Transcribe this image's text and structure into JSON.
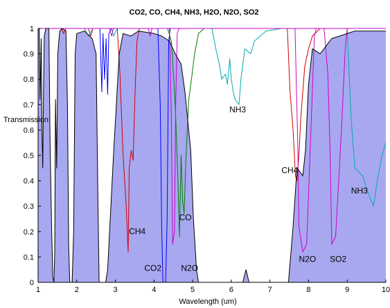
{
  "chart_data": {
    "type": "area",
    "title": "CO2, CO, CH4, NH3, H2O, N2O, SO2",
    "xlabel": "Wavelength (um)",
    "ylabel": "Transmission",
    "xlim": [
      1,
      10
    ],
    "ylim": [
      0,
      1
    ],
    "x_ticks": [
      "1",
      "2",
      "3",
      "4",
      "5",
      "6",
      "7",
      "8",
      "9",
      "10"
    ],
    "y_ticks": [
      "0",
      "0.1",
      "0.2",
      "0.3",
      "0.4",
      "0.5",
      "0.6",
      "0.7",
      "0.8",
      "0.9",
      "1"
    ],
    "grid": false,
    "series": [
      {
        "name": "H2O",
        "color": "#000000",
        "fill": "#a8a8f0",
        "points": [
          [
            1,
            1
          ],
          [
            1.03,
            1
          ],
          [
            1.05,
            0.72
          ],
          [
            1.08,
            0.96
          ],
          [
            1.1,
            0.6
          ],
          [
            1.12,
            0.45
          ],
          [
            1.14,
            0.74
          ],
          [
            1.16,
            0.97
          ],
          [
            1.2,
            1
          ],
          [
            1.28,
            1
          ],
          [
            1.31,
            0.55
          ],
          [
            1.35,
            0.22
          ],
          [
            1.38,
            0.02
          ],
          [
            1.41,
            0
          ],
          [
            1.43,
            0.12
          ],
          [
            1.45,
            0.72
          ],
          [
            1.48,
            0.45
          ],
          [
            1.51,
            0.9
          ],
          [
            1.56,
            0.99
          ],
          [
            1.62,
            1
          ],
          [
            1.72,
            0.99
          ],
          [
            1.76,
            0.7
          ],
          [
            1.79,
            0.15
          ],
          [
            1.82,
            0
          ],
          [
            1.88,
            0
          ],
          [
            1.92,
            0.2
          ],
          [
            1.96,
            0.9
          ],
          [
            2,
            0.98
          ],
          [
            2.2,
            0.99
          ],
          [
            2.4,
            0.96
          ],
          [
            2.5,
            0.9
          ],
          [
            2.55,
            0.3
          ],
          [
            2.58,
            0
          ],
          [
            2.75,
            0
          ],
          [
            2.8,
            0.05
          ],
          [
            2.95,
            0.5
          ],
          [
            3.1,
            0.9
          ],
          [
            3.2,
            0.98
          ],
          [
            3.4,
            0.97
          ],
          [
            3.6,
            0.99
          ],
          [
            4,
            0.98
          ],
          [
            4.2,
            0.97
          ],
          [
            4.4,
            0.95
          ],
          [
            4.55,
            0.9
          ],
          [
            4.7,
            0.86
          ],
          [
            4.8,
            0.75
          ],
          [
            4.95,
            0.52
          ],
          [
            5.02,
            0.25
          ],
          [
            5.1,
            0.05
          ],
          [
            5.15,
            0
          ],
          [
            6.3,
            0
          ],
          [
            6.38,
            0.05
          ],
          [
            6.46,
            0
          ],
          [
            7.48,
            0
          ],
          [
            7.6,
            0.22
          ],
          [
            7.7,
            0.45
          ],
          [
            7.85,
            0.42
          ],
          [
            7.92,
            0.52
          ],
          [
            8,
            0.78
          ],
          [
            8.1,
            0.92
          ],
          [
            8.3,
            0.9
          ],
          [
            8.6,
            0.96
          ],
          [
            9.2,
            0.99
          ],
          [
            10,
            0.99
          ]
        ]
      },
      {
        "name": "CO2",
        "color": "#0000ff",
        "points": [
          [
            1,
            1
          ],
          [
            2.6,
            1
          ],
          [
            2.65,
            0.75
          ],
          [
            2.68,
            0.98
          ],
          [
            2.72,
            0.8
          ],
          [
            2.76,
            0.96
          ],
          [
            2.8,
            0.74
          ],
          [
            2.83,
            0.98
          ],
          [
            2.9,
            1
          ],
          [
            4.1,
            1
          ],
          [
            4.16,
            0.7
          ],
          [
            4.2,
            0.2
          ],
          [
            4.23,
            0
          ],
          [
            4.3,
            0
          ],
          [
            4.34,
            0.25
          ],
          [
            4.38,
            0.95
          ],
          [
            4.42,
            1
          ],
          [
            10,
            1
          ]
        ]
      },
      {
        "name": "CO",
        "color": "#008000",
        "points": [
          [
            1,
            1
          ],
          [
            4.35,
            1
          ],
          [
            4.45,
            0.95
          ],
          [
            4.55,
            0.7
          ],
          [
            4.62,
            0.4
          ],
          [
            4.66,
            0.18
          ],
          [
            4.7,
            0.5
          ],
          [
            4.74,
            0.32
          ],
          [
            4.78,
            0.27
          ],
          [
            4.83,
            0.5
          ],
          [
            4.9,
            0.72
          ],
          [
            4.97,
            0.8
          ],
          [
            5.05,
            0.9
          ],
          [
            5.15,
            0.98
          ],
          [
            5.3,
            1
          ],
          [
            10,
            1
          ]
        ]
      },
      {
        "name": "CH4",
        "color": "#cc0000",
        "points": [
          [
            1,
            1
          ],
          [
            1.6,
            1
          ],
          [
            1.66,
            0.98
          ],
          [
            1.72,
            1
          ],
          [
            2.3,
            1
          ],
          [
            2.36,
            0.97
          ],
          [
            2.42,
            1
          ],
          [
            3.05,
            1
          ],
          [
            3.12,
            0.82
          ],
          [
            3.2,
            0.5
          ],
          [
            3.28,
            0.3
          ],
          [
            3.33,
            0.12
          ],
          [
            3.36,
            0.45
          ],
          [
            3.41,
            0.52
          ],
          [
            3.46,
            0.48
          ],
          [
            3.51,
            0.75
          ],
          [
            3.56,
            0.95
          ],
          [
            3.62,
            1
          ],
          [
            7.45,
            1
          ],
          [
            7.52,
            0.75
          ],
          [
            7.6,
            0.6
          ],
          [
            7.66,
            0.42
          ],
          [
            7.7,
            0.4
          ],
          [
            7.75,
            0.5
          ],
          [
            7.8,
            0.65
          ],
          [
            7.9,
            0.85
          ],
          [
            8,
            0.92
          ],
          [
            8.1,
            0.97
          ],
          [
            8.3,
            1
          ],
          [
            10,
            1
          ]
        ]
      },
      {
        "name": "NH3",
        "color": "#00aaaa",
        "points": [
          [
            1,
            1
          ],
          [
            2.2,
            1
          ],
          [
            2.3,
            0.97
          ],
          [
            2.42,
            1
          ],
          [
            2.9,
            1
          ],
          [
            2.95,
            0.97
          ],
          [
            3.05,
            1
          ],
          [
            5.5,
            1
          ],
          [
            5.6,
            0.92
          ],
          [
            5.7,
            0.85
          ],
          [
            5.75,
            0.8
          ],
          [
            5.85,
            0.82
          ],
          [
            5.9,
            0.78
          ],
          [
            5.96,
            0.88
          ],
          [
            6,
            0.8
          ],
          [
            6.05,
            0.75
          ],
          [
            6.1,
            0.72
          ],
          [
            6.2,
            0.7
          ],
          [
            6.25,
            0.8
          ],
          [
            6.35,
            0.92
          ],
          [
            6.5,
            0.9
          ],
          [
            6.6,
            0.95
          ],
          [
            6.75,
            0.97
          ],
          [
            6.9,
            0.99
          ],
          [
            7.3,
            1
          ],
          [
            9,
            1
          ],
          [
            9.1,
            0.65
          ],
          [
            9.2,
            0.45
          ],
          [
            9.4,
            0.42
          ],
          [
            9.55,
            0.35
          ],
          [
            9.68,
            0.3
          ],
          [
            9.78,
            0.4
          ],
          [
            9.9,
            0.5
          ],
          [
            10,
            0.55
          ]
        ]
      },
      {
        "name": "N2O",
        "color": "#cc00cc",
        "points": [
          [
            1,
            1
          ],
          [
            2.85,
            1
          ],
          [
            2.9,
            0.97
          ],
          [
            2.95,
            1
          ],
          [
            3.85,
            1
          ],
          [
            3.9,
            0.97
          ],
          [
            3.95,
            1
          ],
          [
            4.4,
            1
          ],
          [
            4.45,
            0.65
          ],
          [
            4.48,
            0.15
          ],
          [
            4.53,
            0.2
          ],
          [
            4.56,
            0.7
          ],
          [
            4.6,
            0.98
          ],
          [
            4.65,
            1
          ],
          [
            7.65,
            1
          ],
          [
            7.72,
            0.55
          ],
          [
            7.75,
            0.22
          ],
          [
            7.85,
            0.12
          ],
          [
            7.95,
            0.15
          ],
          [
            8.05,
            0.55
          ],
          [
            8.15,
            0.97
          ],
          [
            8.2,
            1
          ],
          [
            10,
            1
          ]
        ]
      },
      {
        "name": "SO2",
        "color": "#cc00cc",
        "points": [
          [
            1,
            1
          ],
          [
            8.4,
            1
          ],
          [
            8.5,
            0.82
          ],
          [
            8.56,
            0.5
          ],
          [
            8.6,
            0.15
          ],
          [
            8.7,
            0.18
          ],
          [
            8.85,
            0.6
          ],
          [
            8.95,
            0.92
          ],
          [
            9,
            1
          ],
          [
            10,
            1
          ]
        ]
      }
    ],
    "annotations": [
      {
        "text": "CH4",
        "x": 3.35,
        "y": 0.19
      },
      {
        "text": "CO2",
        "x": 3.75,
        "y": 0.045
      },
      {
        "text": "CO",
        "x": 4.65,
        "y": 0.245
      },
      {
        "text": "N2O",
        "x": 4.7,
        "y": 0.045
      },
      {
        "text": "NH3",
        "x": 5.95,
        "y": 0.67
      },
      {
        "text": "CH4",
        "x": 7.3,
        "y": 0.43
      },
      {
        "text": "N2O",
        "x": 7.75,
        "y": 0.08
      },
      {
        "text": "SO2",
        "x": 8.55,
        "y": 0.08
      },
      {
        "text": "NH3",
        "x": 9.1,
        "y": 0.35
      }
    ]
  }
}
